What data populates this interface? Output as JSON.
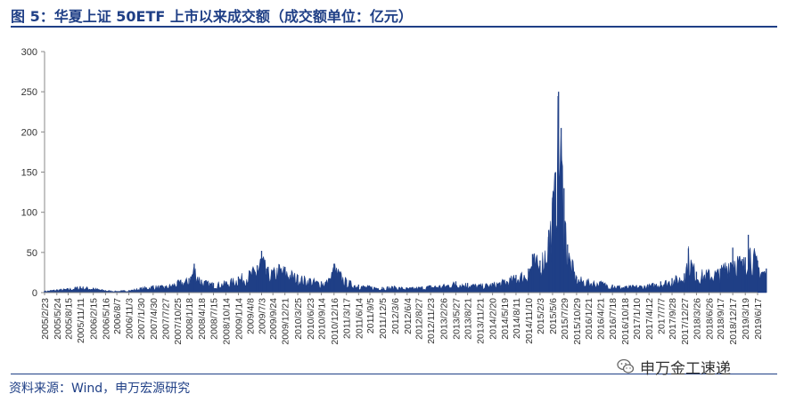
{
  "header": {
    "title": "图 5：华夏上证 50ETF 上市以来成交额（成交额单位：亿元）"
  },
  "footer": {
    "source": "资料来源：Wind，申万宏源研究",
    "watermark": "申万金工速递",
    "watermark_icon": "wechat-icon"
  },
  "colors": {
    "accent": "#1f3f86",
    "series": "#1f3f86",
    "axis": "#888888"
  },
  "chart_data": {
    "type": "area",
    "title": "",
    "xlabel": "",
    "ylabel": "",
    "ylim": [
      0,
      300
    ],
    "yticks": [
      0,
      50,
      100,
      150,
      200,
      250,
      300
    ],
    "grid": false,
    "legend": "none",
    "xtick_labels": [
      "2005/2/23",
      "2005/5/24",
      "2005/8/15",
      "2005/11/11",
      "2006/2/15",
      "2006/5/16",
      "2006/8/7",
      "2006/11/3",
      "2007/1/30",
      "2007/4/30",
      "2007/7/27",
      "2007/10/25",
      "2008/1/18",
      "2008/4/18",
      "2008/7/15",
      "2008/10/14",
      "2009/1/14",
      "2009/4/8",
      "2009/7/3",
      "2009/9/24",
      "2009/12/21",
      "2010/3/25",
      "2010/6/23",
      "2010/9/14",
      "2010/12/16",
      "2011/3/17",
      "2011/6/14",
      "2011/9/5",
      "2011/12/5",
      "2012/3/6",
      "2012/6/4",
      "2012/8/27",
      "2012/11/23",
      "2013/2/26",
      "2013/5/27",
      "2013/8/21",
      "2013/11/21",
      "2014/2/20",
      "2014/5/19",
      "2014/8/11",
      "2014/11/10",
      "2015/2/3",
      "2015/5/6",
      "2015/7/29",
      "2015/10/29",
      "2016/1/21",
      "2016/4/21",
      "2016/7/18",
      "2016/10/18",
      "2017/1/10",
      "2017/4/12",
      "2017/7/7",
      "2017/9/28",
      "2017/12/27",
      "2018/3/26",
      "2018/6/26",
      "2018/9/17",
      "2018/12/17",
      "2019/3/19",
      "2019/6/17"
    ],
    "x": [
      "2005/2/23",
      "2005/5/24",
      "2005/8/15",
      "2005/11/11",
      "2006/2/15",
      "2006/5/16",
      "2006/8/7",
      "2006/11/3",
      "2007/1/30",
      "2007/4/30",
      "2007/7/27",
      "2007/10/25",
      "2008/1/18",
      "2008/2/25",
      "2008/4/18",
      "2008/7/15",
      "2008/10/14",
      "2009/1/14",
      "2009/4/8",
      "2009/6/1",
      "2009/7/3",
      "2009/8/10",
      "2009/9/24",
      "2009/11/10",
      "2009/12/21",
      "2010/3/25",
      "2010/6/23",
      "2010/9/14",
      "2010/11/12",
      "2010/12/16",
      "2011/3/17",
      "2011/6/14",
      "2011/9/5",
      "2011/12/5",
      "2012/3/6",
      "2012/6/4",
      "2012/8/27",
      "2012/11/23",
      "2013/2/26",
      "2013/5/27",
      "2013/8/21",
      "2013/11/21",
      "2014/2/20",
      "2014/5/19",
      "2014/8/11",
      "2014/11/10",
      "2014/12/10",
      "2015/2/3",
      "2015/4/8",
      "2015/5/6",
      "2015/5/28",
      "2015/6/19",
      "2015/7/8",
      "2015/7/29",
      "2015/8/24",
      "2015/10/29",
      "2016/1/21",
      "2016/4/21",
      "2016/7/18",
      "2016/10/18",
      "2017/1/10",
      "2017/4/12",
      "2017/7/7",
      "2017/9/28",
      "2017/12/27",
      "2018/1/26",
      "2018/3/26",
      "2018/6/26",
      "2018/9/17",
      "2018/12/17",
      "2019/2/25",
      "2019/3/19",
      "2019/4/10",
      "2019/6/17",
      "2019/8/20"
    ],
    "series": [
      {
        "values": [
          2,
          4,
          5,
          8,
          6,
          3,
          2,
          3,
          6,
          9,
          8,
          14,
          18,
          36,
          16,
          12,
          14,
          20,
          27,
          34,
          52,
          30,
          28,
          35,
          32,
          22,
          18,
          14,
          18,
          36,
          16,
          10,
          8,
          7,
          8,
          6,
          7,
          9,
          10,
          14,
          12,
          10,
          12,
          16,
          22,
          30,
          48,
          40,
          78,
          118,
          150,
          250,
          205,
          130,
          60,
          20,
          16,
          14,
          10,
          8,
          9,
          10,
          14,
          18,
          24,
          55,
          26,
          28,
          30,
          56,
          42,
          44,
          72,
          40,
          30
        ]
      }
    ]
  }
}
